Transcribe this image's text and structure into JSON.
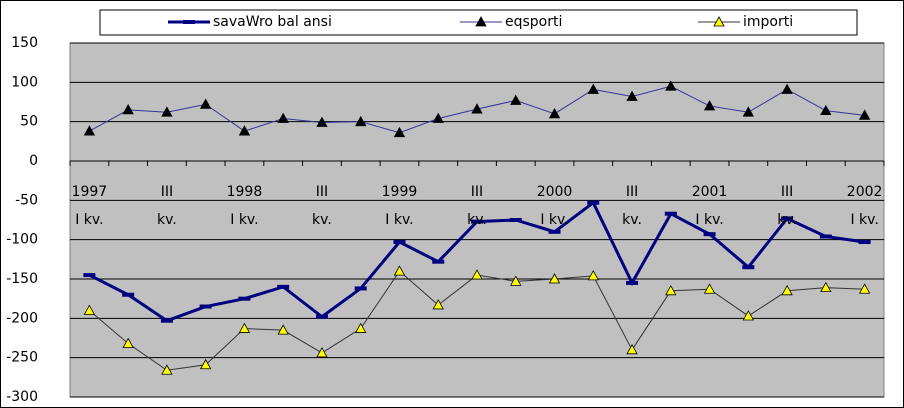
{
  "chart_data": {
    "type": "line",
    "categories": [
      "1997\nI kv.",
      null,
      "III\nkv.",
      null,
      "1998\nI kv.",
      null,
      "III\nkv.",
      null,
      "1999\nI kv.",
      null,
      "III\nkv.",
      null,
      "2000\nI kv.",
      null,
      "III\nkv.",
      null,
      "2001\nI kv.",
      null,
      "III\nkv.",
      null,
      "2002\nI kv."
    ],
    "series": [
      {
        "name": "savaWro bal ansi",
        "color": "#000080",
        "marker": "dash",
        "marker_color": "#000080",
        "values": [
          -145,
          -170,
          -203,
          -185,
          -175,
          -160,
          -198,
          -162,
          -103,
          -128,
          -77,
          -75,
          -90,
          -53,
          -155,
          -67,
          -93,
          -135,
          -73,
          -96,
          -103
        ]
      },
      {
        "name": "eqsporti",
        "color": "#333399",
        "marker": "triangle",
        "marker_color": "#000000",
        "values": [
          38,
          65,
          62,
          72,
          38,
          54,
          49,
          50,
          36,
          54,
          66,
          77,
          60,
          91,
          82,
          95,
          70,
          62,
          91,
          64,
          58
        ]
      },
      {
        "name": "importi",
        "color": "#333333",
        "marker": "triangle",
        "marker_color": "#ffff00",
        "values": [
          -190,
          -232,
          -266,
          -259,
          -213,
          -215,
          -244,
          -213,
          -140,
          -183,
          -145,
          -153,
          -150,
          -146,
          -240,
          -165,
          -163,
          -197,
          -165,
          -161,
          -163
        ]
      }
    ],
    "ylim": [
      -300,
      150
    ],
    "yticks": [
      -300,
      -250,
      -200,
      -150,
      -100,
      -50,
      0,
      50,
      100,
      150
    ],
    "grid": true,
    "legend": "top"
  }
}
